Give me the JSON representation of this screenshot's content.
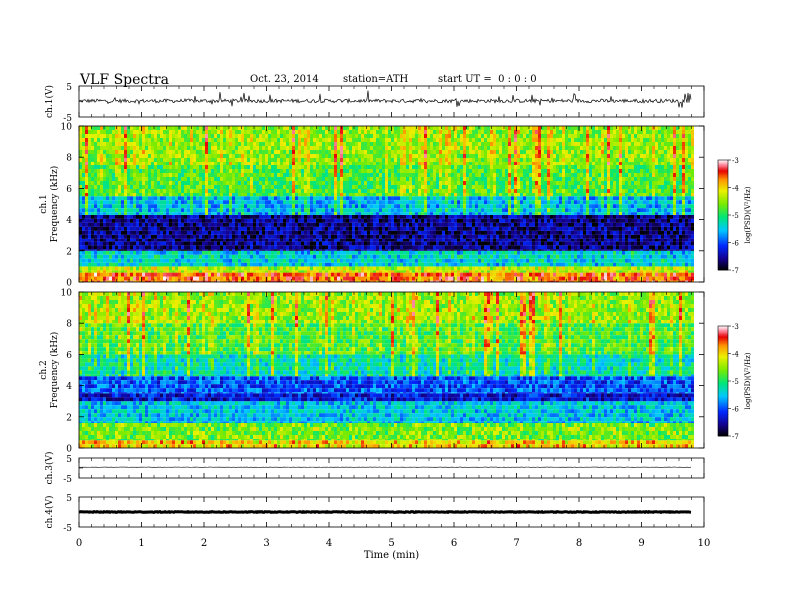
{
  "header": {
    "title": "VLF Spectra",
    "date": "Oct. 23, 2014",
    "station": "station=ATH",
    "start": "start UT =  0 : 0 : 0"
  },
  "chart_data": [
    {
      "type": "line",
      "id": "ch1-waveform",
      "ylabel": "ch.1(V)",
      "ylim": [
        -5,
        5
      ],
      "yticks": [
        "5",
        "-5"
      ],
      "x_range_min": [
        0,
        9.8
      ],
      "baseline_v": 0.2,
      "noise_amplitude_v": 1.2
    },
    {
      "type": "heatmap",
      "id": "ch1-spectrogram",
      "ylabel": [
        "ch.1",
        "Frequency  (kHz)"
      ],
      "xlim": [
        0,
        10
      ],
      "ylim": [
        0,
        10
      ],
      "yticks": [
        "0",
        "2",
        "4",
        "6",
        "8",
        "10"
      ],
      "data_x_range_min": [
        0,
        9.8
      ],
      "colorbar": {
        "label": "log(PSD)(V²/Hz)",
        "range": [
          -7,
          -3
        ],
        "ticks": [
          "-3",
          "-4",
          "-5",
          "-6",
          "-7"
        ]
      },
      "bands_khz": [
        {
          "from": 0,
          "to": 0.6,
          "level": -3.6
        },
        {
          "from": 0.6,
          "to": 1.0,
          "level": -4.3
        },
        {
          "from": 1.0,
          "to": 2.0,
          "level": -5.4
        },
        {
          "from": 2.0,
          "to": 2.6,
          "level": -6.6
        },
        {
          "from": 2.6,
          "to": 4.3,
          "level": -6.6
        },
        {
          "from": 4.3,
          "to": 5.5,
          "level": -5.6
        },
        {
          "from": 5.5,
          "to": 7.5,
          "level": -4.8
        },
        {
          "from": 7.5,
          "to": 10,
          "level": -4.5
        }
      ]
    },
    {
      "type": "heatmap",
      "id": "ch2-spectrogram",
      "ylabel": [
        "ch.2",
        "Frequency  (kHz)"
      ],
      "xlim": [
        0,
        10
      ],
      "ylim": [
        0,
        10
      ],
      "yticks": [
        "0",
        "2",
        "4",
        "6",
        "8",
        "10"
      ],
      "data_x_range_min": [
        0,
        9.8
      ],
      "colorbar": {
        "label": "log(PSD)(V²/Hz)",
        "range": [
          -7,
          -3
        ],
        "ticks": [
          "-3",
          "-4",
          "-5",
          "-6",
          "-7"
        ]
      },
      "bands_khz": [
        {
          "from": 0,
          "to": 0.5,
          "level": -4.0
        },
        {
          "from": 0.5,
          "to": 1.6,
          "level": -4.6
        },
        {
          "from": 1.6,
          "to": 3.0,
          "level": -5.5
        },
        {
          "from": 3.0,
          "to": 3.5,
          "level": -6.3
        },
        {
          "from": 3.5,
          "to": 4.6,
          "level": -6.0
        },
        {
          "from": 4.6,
          "to": 6.0,
          "level": -5.3
        },
        {
          "from": 6.0,
          "to": 8.0,
          "level": -4.8
        },
        {
          "from": 8.0,
          "to": 10,
          "level": -4.5
        }
      ]
    },
    {
      "type": "line",
      "id": "ch3-waveform",
      "ylabel": "ch.3(V)",
      "ylim": [
        -5,
        5
      ],
      "yticks": [
        "5",
        "-5"
      ],
      "x_range_min": [
        0,
        9.8
      ],
      "baseline_v": 0.4,
      "noise_amplitude_v": 0.15
    },
    {
      "type": "line",
      "id": "ch4-waveform",
      "ylabel": "ch.4(V)",
      "ylim": [
        -5,
        5
      ],
      "yticks": [
        "5",
        "-5"
      ],
      "x_range_min": [
        0,
        9.8
      ],
      "baseline_v": 0.0,
      "noise_amplitude_v": 0.25
    }
  ],
  "xaxis": {
    "label": "Time  (min)",
    "xlim": [
      0,
      10
    ],
    "ticks": [
      "0",
      "1",
      "2",
      "3",
      "4",
      "5",
      "6",
      "7",
      "8",
      "9",
      "10"
    ]
  },
  "colors": {
    "waveform": "#000000",
    "axis": "#000000"
  }
}
